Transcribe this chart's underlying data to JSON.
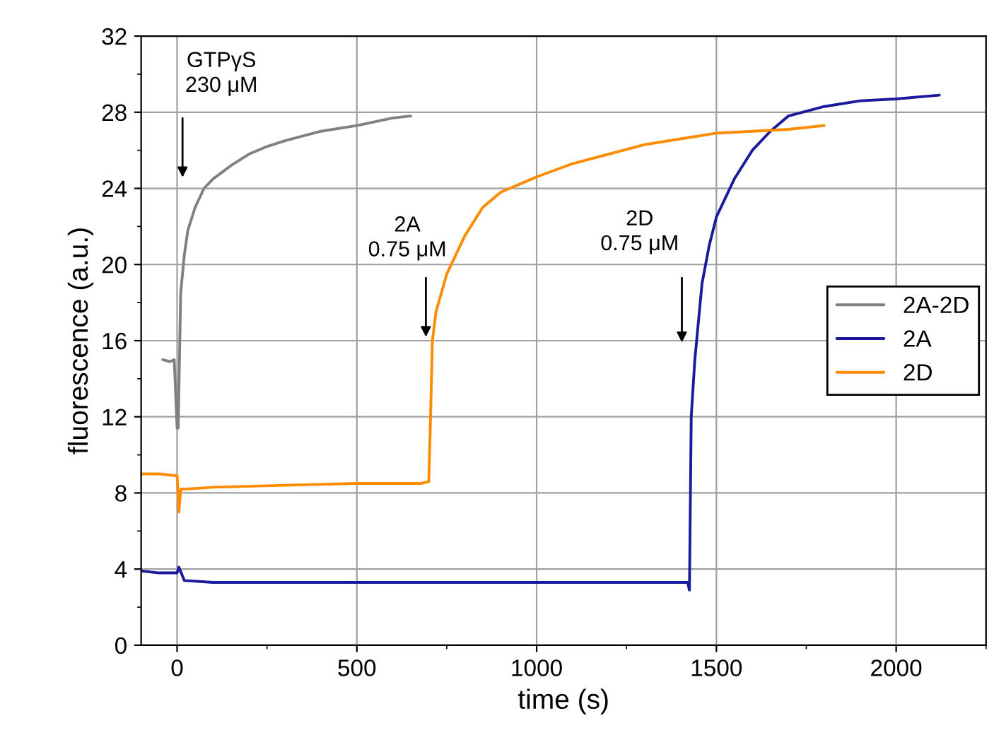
{
  "chart_data": {
    "type": "line",
    "xlabel": "time (s)",
    "ylabel": "fluorescence (a.u.)",
    "xlim": [
      -100,
      2250
    ],
    "xticks": [
      0,
      500,
      1000,
      1500,
      2000
    ],
    "ylim": [
      0,
      32
    ],
    "yticks": [
      0,
      4,
      8,
      12,
      16,
      20,
      24,
      28,
      32
    ],
    "grid": true,
    "legend": "right",
    "marker": "none",
    "line_style": "solid",
    "series": [
      {
        "name": "2A-2D",
        "color": "#808080",
        "x": [
          -40,
          -20,
          -8,
          0,
          3,
          10,
          20,
          30,
          50,
          75,
          100,
          150,
          200,
          250,
          300,
          400,
          500,
          600,
          650
        ],
        "values": [
          15,
          14.9,
          15,
          11.4,
          11.4,
          18.5,
          20.5,
          21.8,
          23,
          24,
          24.5,
          25.2,
          25.8,
          26.2,
          26.5,
          27,
          27.3,
          27.7,
          27.8
        ]
      },
      {
        "name": "2A",
        "color": "#1a1a9c",
        "x": [
          -100,
          -50,
          0,
          5,
          20,
          100,
          300,
          500,
          800,
          1000,
          1200,
          1420,
          1425,
          1430,
          1440,
          1460,
          1480,
          1500,
          1550,
          1600,
          1650,
          1700,
          1800,
          1900,
          2000,
          2120
        ],
        "values": [
          3.9,
          3.8,
          3.8,
          4.1,
          3.4,
          3.3,
          3.3,
          3.3,
          3.3,
          3.3,
          3.3,
          3.3,
          2.9,
          12,
          15,
          19,
          21,
          22.5,
          24.5,
          26,
          27,
          27.8,
          28.3,
          28.6,
          28.7,
          28.9
        ]
      },
      {
        "name": "2D",
        "color": "#ff8c00",
        "x": [
          -100,
          -50,
          0,
          5,
          10,
          20,
          100,
          300,
          500,
          680,
          700,
          705,
          710,
          720,
          750,
          800,
          850,
          900,
          1000,
          1100,
          1200,
          1300,
          1400,
          1500,
          1600,
          1700,
          1800
        ],
        "values": [
          9,
          9,
          8.9,
          7,
          8.2,
          8.2,
          8.3,
          8.4,
          8.5,
          8.5,
          8.6,
          12,
          16,
          17.5,
          19.5,
          21.5,
          23,
          23.8,
          24.6,
          25.3,
          25.8,
          26.3,
          26.6,
          26.9,
          27,
          27.1,
          27.3
        ]
      }
    ],
    "annotations": [
      "GTPγS\n230 μM",
      "2A\n0.75 μM",
      "2D\n0.75 μM"
    ]
  }
}
